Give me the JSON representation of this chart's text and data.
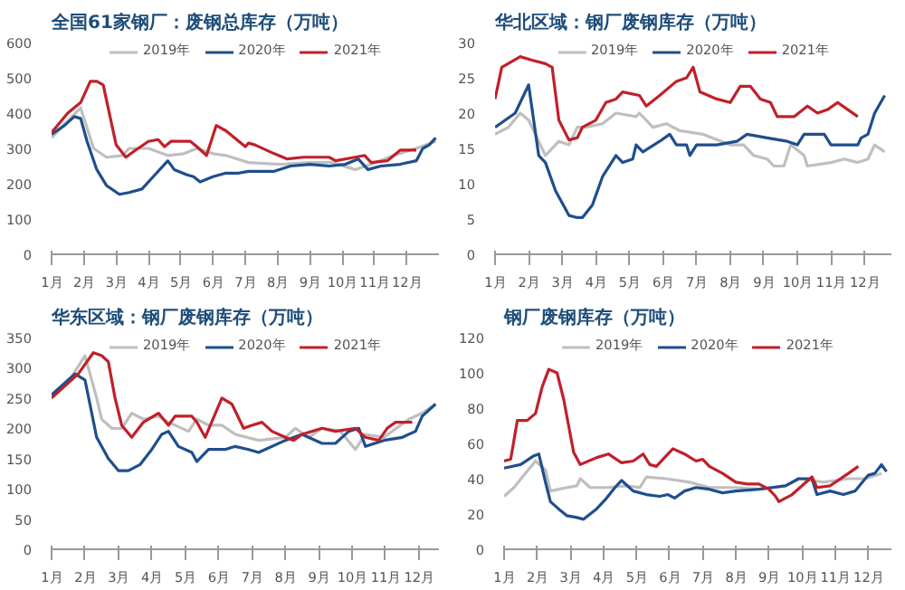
{
  "chart_data": [
    {
      "type": "line",
      "title": "全国61家钢厂：废钢总库存（万吨）",
      "xlim": [
        1,
        13
      ],
      "ylim": [
        0,
        600
      ],
      "yticks": [
        0,
        100,
        200,
        300,
        400,
        500,
        600
      ],
      "xticks": [
        {
          "value": 1,
          "label": "1月"
        },
        {
          "value": 2,
          "label": "2月"
        },
        {
          "value": 3,
          "label": "3月"
        },
        {
          "value": 4,
          "label": "4月"
        },
        {
          "value": 5,
          "label": "5月"
        },
        {
          "value": 6,
          "label": "6月"
        },
        {
          "value": 7,
          "label": "7月"
        },
        {
          "value": 8,
          "label": "8月"
        },
        {
          "value": 9,
          "label": "9月"
        },
        {
          "value": 10,
          "label": "10月"
        },
        {
          "value": 11,
          "label": "11月"
        },
        {
          "value": 12,
          "label": "12月"
        }
      ],
      "legend": "top",
      "marker": "none",
      "line_style": "solid",
      "series": [
        {
          "name": "2019年",
          "color": "#bfbfbf",
          "x": [
            1,
            1.9,
            2.3,
            2.7,
            3.2,
            3.4,
            4.0,
            4.6,
            5.1,
            5.5,
            6.0,
            6.4,
            7.1,
            8.1,
            9.0,
            9.7,
            10.4,
            10.9,
            11.6,
            12.3,
            12.9
          ],
          "values": [
            330,
            415,
            300,
            275,
            280,
            300,
            300,
            280,
            285,
            300,
            285,
            280,
            260,
            255,
            260,
            260,
            240,
            255,
            280,
            300,
            320
          ]
        },
        {
          "name": "2020年",
          "color": "#1f4e8c",
          "x": [
            1,
            1.4,
            1.7,
            1.9,
            2.1,
            2.4,
            2.7,
            3.1,
            3.4,
            3.8,
            4.2,
            4.5,
            4.6,
            4.8,
            5.2,
            5.4,
            5.6,
            6.0,
            6.4,
            6.8,
            7.1,
            7.9,
            8.4,
            9.0,
            9.6,
            10.1,
            10.5,
            10.8,
            11.2,
            11.8,
            12.3,
            12.5,
            12.7,
            12.9
          ],
          "values": [
            340,
            365,
            390,
            385,
            320,
            240,
            195,
            170,
            175,
            185,
            225,
            255,
            265,
            240,
            225,
            220,
            205,
            220,
            230,
            230,
            235,
            235,
            250,
            255,
            250,
            255,
            270,
            240,
            250,
            255,
            265,
            300,
            310,
            330
          ]
        },
        {
          "name": "2021年",
          "color": "#c0202a",
          "x": [
            1,
            1.5,
            1.9,
            2.2,
            2.4,
            2.6,
            3.0,
            3.3,
            3.6,
            4.0,
            4.3,
            4.5,
            4.7,
            5.3,
            5.5,
            5.8,
            6.1,
            6.4,
            7.0,
            7.1,
            7.3,
            7.9,
            8.3,
            8.8,
            9.6,
            9.8,
            10.4,
            10.7,
            10.9,
            11.4,
            11.8,
            12.3
          ],
          "values": [
            345,
            400,
            430,
            490,
            490,
            480,
            310,
            275,
            295,
            320,
            325,
            305,
            320,
            320,
            305,
            280,
            365,
            350,
            305,
            315,
            310,
            285,
            270,
            275,
            275,
            265,
            275,
            280,
            260,
            265,
            295,
            295
          ]
        }
      ]
    },
    {
      "type": "line",
      "title": "华北区域：钢厂废钢库存（万吨）",
      "xlim": [
        1,
        12.8
      ],
      "ylim": [
        0,
        30
      ],
      "yticks": [
        0,
        5,
        10,
        15,
        20,
        25,
        30
      ],
      "xticks": [
        {
          "value": 1,
          "label": "1月"
        },
        {
          "value": 2,
          "label": "2月"
        },
        {
          "value": 3,
          "label": "3月"
        },
        {
          "value": 4,
          "label": "4月"
        },
        {
          "value": 5,
          "label": "5月"
        },
        {
          "value": 6,
          "label": "6月"
        },
        {
          "value": 7,
          "label": "7月"
        },
        {
          "value": 8,
          "label": "8月"
        },
        {
          "value": 9,
          "label": "9月"
        },
        {
          "value": 10,
          "label": "10月"
        },
        {
          "value": 11,
          "label": "11月"
        },
        {
          "value": 12,
          "label": "12月"
        }
      ],
      "legend": "top",
      "marker": "none",
      "line_style": "solid",
      "series": [
        {
          "name": "2019年",
          "color": "#bfbfbf",
          "x": [
            1,
            1.4,
            1.75,
            2.0,
            2.3,
            2.5,
            2.9,
            3.2,
            3.45,
            3.7,
            4.2,
            4.6,
            5.2,
            5.3,
            5.7,
            6.1,
            6.5,
            7.2,
            8.0,
            8.4,
            8.7,
            9.1,
            9.3,
            9.6,
            9.8,
            10.2,
            10.3,
            11.0,
            11.4,
            11.8,
            12.1,
            12.3,
            12.6
          ],
          "values": [
            17,
            18,
            20,
            19,
            16,
            14,
            16,
            15.5,
            18,
            18,
            18.5,
            20,
            19.5,
            20,
            18,
            18.5,
            17.5,
            17,
            15.5,
            15.5,
            14,
            13.5,
            12.5,
            12.5,
            15.5,
            14,
            12.5,
            13,
            13.5,
            13,
            13.5,
            15.5,
            14.5
          ]
        },
        {
          "name": "2020年",
          "color": "#1f4e8c",
          "x": [
            1,
            1.6,
            2.0,
            2.3,
            2.5,
            2.8,
            3.2,
            3.45,
            3.6,
            3.9,
            4.2,
            4.6,
            4.8,
            5.1,
            5.2,
            5.4,
            5.9,
            6.2,
            6.4,
            6.7,
            6.8,
            7.0,
            7.6,
            8.2,
            8.5,
            9.1,
            9.7,
            10.0,
            10.2,
            10.8,
            11.0,
            11.4,
            11.8,
            11.9,
            12.1,
            12.3,
            12.6
          ],
          "values": [
            18,
            20,
            24,
            14,
            13,
            9,
            5.5,
            5.2,
            5.2,
            7,
            11,
            14,
            13,
            13.5,
            15.5,
            14.5,
            16,
            17,
            15.5,
            15.5,
            14,
            15.5,
            15.5,
            16,
            17,
            16.5,
            16,
            15.5,
            17,
            17,
            15.5,
            15.5,
            15.5,
            16.5,
            17,
            20,
            22.5
          ]
        },
        {
          "name": "2021年",
          "color": "#c0202a",
          "x": [
            1,
            1.2,
            1.75,
            2.1,
            2.5,
            2.7,
            2.9,
            3.2,
            3.45,
            3.6,
            4.0,
            4.3,
            4.6,
            4.8,
            5.3,
            5.5,
            5.9,
            6.4,
            6.7,
            6.9,
            7.1,
            7.6,
            8.0,
            8.3,
            8.6,
            8.9,
            9.2,
            9.4,
            9.9,
            10.3,
            10.6,
            10.9,
            11.2,
            11.5,
            11.8
          ],
          "values": [
            22,
            26.5,
            28,
            27.5,
            27,
            26.5,
            19,
            16.2,
            16.5,
            18,
            19,
            21.5,
            22,
            23,
            22.5,
            21,
            22.5,
            24.5,
            25,
            26.5,
            23,
            22,
            21.5,
            23.8,
            23.8,
            22,
            21.5,
            19.5,
            19.5,
            21,
            20,
            20.5,
            21.5,
            20.5,
            19.5
          ]
        }
      ]
    },
    {
      "type": "line",
      "title": "华东区域：钢厂废钢库存（万吨）",
      "xlim": [
        1,
        12.6
      ],
      "ylim": [
        0,
        350
      ],
      "yticks": [
        0,
        50,
        100,
        150,
        200,
        250,
        300,
        350
      ],
      "xticks": [
        {
          "value": 1,
          "label": "1月"
        },
        {
          "value": 2,
          "label": "2月"
        },
        {
          "value": 3,
          "label": "3月"
        },
        {
          "value": 4,
          "label": "4月"
        },
        {
          "value": 5,
          "label": "5月"
        },
        {
          "value": 6,
          "label": "6月"
        },
        {
          "value": 7,
          "label": "7月"
        },
        {
          "value": 8,
          "label": "8月"
        },
        {
          "value": 9,
          "label": "9月"
        },
        {
          "value": 10,
          "label": "10月"
        },
        {
          "value": 11,
          "label": "11月"
        },
        {
          "value": 12,
          "label": "12月"
        }
      ],
      "legend": "top",
      "marker": "none",
      "line_style": "solid",
      "series": [
        {
          "name": "2019年",
          "color": "#bfbfbf",
          "x": [
            1,
            1.6,
            2.0,
            2.35,
            2.5,
            2.8,
            3.1,
            3.4,
            3.75,
            4.2,
            4.5,
            5.1,
            5.35,
            5.7,
            6.1,
            6.5,
            7.2,
            8.0,
            8.3,
            8.7,
            9.1,
            9.65,
            10.1,
            10.4,
            10.95,
            11.7,
            12.1,
            12.5
          ],
          "values": [
            255,
            285,
            320,
            250,
            215,
            200,
            200,
            225,
            215,
            220,
            210,
            195,
            215,
            205,
            205,
            190,
            180,
            185,
            200,
            185,
            200,
            195,
            165,
            190,
            185,
            215,
            225,
            240
          ]
        },
        {
          "name": "2020年",
          "color": "#1f4e8c",
          "x": [
            1,
            1.7,
            2.0,
            2.35,
            2.7,
            3.0,
            3.3,
            3.65,
            4.0,
            4.3,
            4.5,
            4.8,
            5.2,
            5.35,
            5.7,
            6.2,
            6.5,
            6.9,
            7.2,
            8.0,
            8.5,
            9.1,
            9.5,
            9.9,
            10.2,
            10.4,
            10.95,
            11.5,
            11.9,
            12.1,
            12.5
          ],
          "values": [
            255,
            290,
            280,
            185,
            150,
            130,
            130,
            140,
            165,
            190,
            195,
            170,
            160,
            145,
            165,
            165,
            170,
            165,
            160,
            180,
            190,
            175,
            175,
            195,
            200,
            170,
            180,
            185,
            195,
            220,
            240
          ]
        },
        {
          "name": "2021年",
          "color": "#c0202a",
          "x": [
            1,
            1.8,
            2.25,
            2.5,
            2.7,
            2.9,
            3.1,
            3.4,
            3.75,
            4.2,
            4.5,
            4.7,
            5.2,
            5.35,
            5.6,
            6.1,
            6.4,
            6.75,
            7.0,
            7.3,
            7.6,
            8.0,
            8.25,
            8.5,
            9.1,
            9.5,
            10.1,
            10.4,
            10.8,
            11.05,
            11.3,
            11.6,
            11.8
          ],
          "values": [
            250,
            290,
            325,
            320,
            310,
            250,
            205,
            185,
            210,
            225,
            205,
            220,
            220,
            210,
            185,
            250,
            240,
            200,
            205,
            210,
            195,
            185,
            180,
            190,
            200,
            195,
            200,
            185,
            180,
            200,
            210,
            210,
            210
          ]
        }
      ]
    },
    {
      "type": "line",
      "title": "钢厂废钢库存（万吨）",
      "xlim": [
        1,
        12.7
      ],
      "ylim": [
        0,
        120
      ],
      "yticks": [
        0,
        20,
        40,
        60,
        80,
        100,
        120
      ],
      "xticks": [
        {
          "value": 1,
          "label": "1月"
        },
        {
          "value": 2,
          "label": "2月"
        },
        {
          "value": 3,
          "label": "3月"
        },
        {
          "value": 4,
          "label": "4月"
        },
        {
          "value": 5,
          "label": "5月"
        },
        {
          "value": 6,
          "label": "6月"
        },
        {
          "value": 7,
          "label": "7月"
        },
        {
          "value": 8,
          "label": "8月"
        },
        {
          "value": 9,
          "label": "9月"
        },
        {
          "value": 10,
          "label": "10月"
        },
        {
          "value": 11,
          "label": "11月"
        },
        {
          "value": 12,
          "label": "12月"
        }
      ],
      "legend": "top",
      "marker": "none",
      "line_style": "solid",
      "series": [
        {
          "name": "2019年",
          "color": "#bfbfbf",
          "x": [
            1,
            1.3,
            1.6,
            1.95,
            2.25,
            2.4,
            2.9,
            3.2,
            3.3,
            3.6,
            4.15,
            4.7,
            5.1,
            5.3,
            5.9,
            6.6,
            7.2,
            8.0,
            8.7,
            9.5,
            9.9,
            10.65,
            11.4,
            11.9,
            12.4
          ],
          "values": [
            30,
            35,
            42,
            50,
            45,
            33,
            35,
            36,
            40,
            35,
            35,
            36,
            35,
            41,
            40,
            38,
            35,
            35,
            34,
            36,
            40,
            38,
            40,
            40,
            43
          ]
        },
        {
          "name": "2020年",
          "color": "#1f4e8c",
          "x": [
            1,
            1.5,
            1.9,
            2.05,
            2.25,
            2.4,
            2.7,
            2.9,
            3.2,
            3.4,
            3.8,
            4.05,
            4.35,
            4.55,
            4.9,
            5.3,
            5.7,
            5.95,
            6.15,
            6.45,
            6.8,
            7.2,
            7.6,
            8.0,
            8.7,
            9.1,
            9.5,
            9.9,
            10.3,
            10.45,
            10.85,
            11.25,
            11.6,
            12.0,
            12.2,
            12.4,
            12.55
          ],
          "values": [
            46,
            48,
            53,
            54,
            38,
            27,
            22,
            19,
            18,
            17,
            23,
            28,
            35,
            39,
            33,
            31,
            30,
            31,
            29,
            33,
            35,
            34,
            32,
            33,
            34,
            35,
            36,
            40,
            40,
            31,
            33,
            31,
            33,
            42,
            43,
            48,
            44
          ]
        },
        {
          "name": "2021年",
          "color": "#c0202a",
          "x": [
            1,
            1.2,
            1.4,
            1.7,
            1.95,
            2.15,
            2.35,
            2.6,
            2.8,
            3.0,
            3.1,
            3.3,
            3.8,
            4.15,
            4.55,
            4.9,
            5.2,
            5.4,
            5.6,
            6.1,
            6.45,
            6.8,
            7.0,
            7.2,
            7.6,
            8.0,
            8.35,
            8.7,
            9.0,
            9.2,
            9.3,
            9.7,
            10.0,
            10.3,
            10.45,
            10.85,
            11.4,
            11.7
          ],
          "values": [
            50,
            51,
            73,
            73,
            77,
            92,
            102,
            100,
            85,
            65,
            55,
            48,
            52,
            54,
            49,
            50,
            54,
            48,
            47,
            57,
            54,
            50,
            51,
            47,
            43,
            38,
            37,
            37,
            34,
            30,
            27,
            31,
            36,
            41,
            35,
            36,
            43,
            47
          ]
        }
      ]
    }
  ]
}
